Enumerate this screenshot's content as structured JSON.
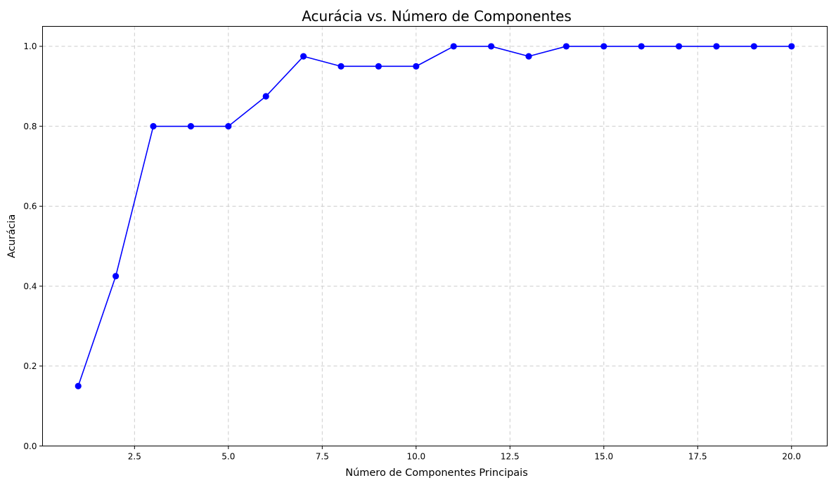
{
  "chart_data": {
    "type": "line",
    "title": "Acurácia vs. Número de Componentes",
    "xlabel": "Número de Componentes Principais",
    "ylabel": "Acurácia",
    "xlim": [
      0.05,
      20.95
    ],
    "ylim": [
      0.0,
      1.05
    ],
    "x_ticks": [
      2.5,
      5.0,
      7.5,
      10.0,
      12.5,
      15.0,
      17.5,
      20.0
    ],
    "x_tick_labels": [
      "2.5",
      "5.0",
      "7.5",
      "10.0",
      "12.5",
      "15.0",
      "17.5",
      "20.0"
    ],
    "y_ticks": [
      0.0,
      0.2,
      0.4,
      0.6,
      0.8,
      1.0
    ],
    "y_tick_labels": [
      "0.0",
      "0.2",
      "0.4",
      "0.6",
      "0.8",
      "1.0"
    ],
    "grid": true,
    "grid_style": "dashed",
    "series": [
      {
        "color": "#0000ff",
        "marker": "circle",
        "x": [
          1,
          2,
          3,
          4,
          5,
          6,
          7,
          8,
          9,
          10,
          11,
          12,
          13,
          14,
          15,
          16,
          17,
          18,
          19,
          20
        ],
        "y": [
          0.15,
          0.425,
          0.8,
          0.8,
          0.8,
          0.875,
          0.975,
          0.95,
          0.95,
          0.95,
          1.0,
          1.0,
          0.975,
          1.0,
          1.0,
          1.0,
          1.0,
          1.0,
          1.0,
          1.0
        ]
      }
    ]
  }
}
